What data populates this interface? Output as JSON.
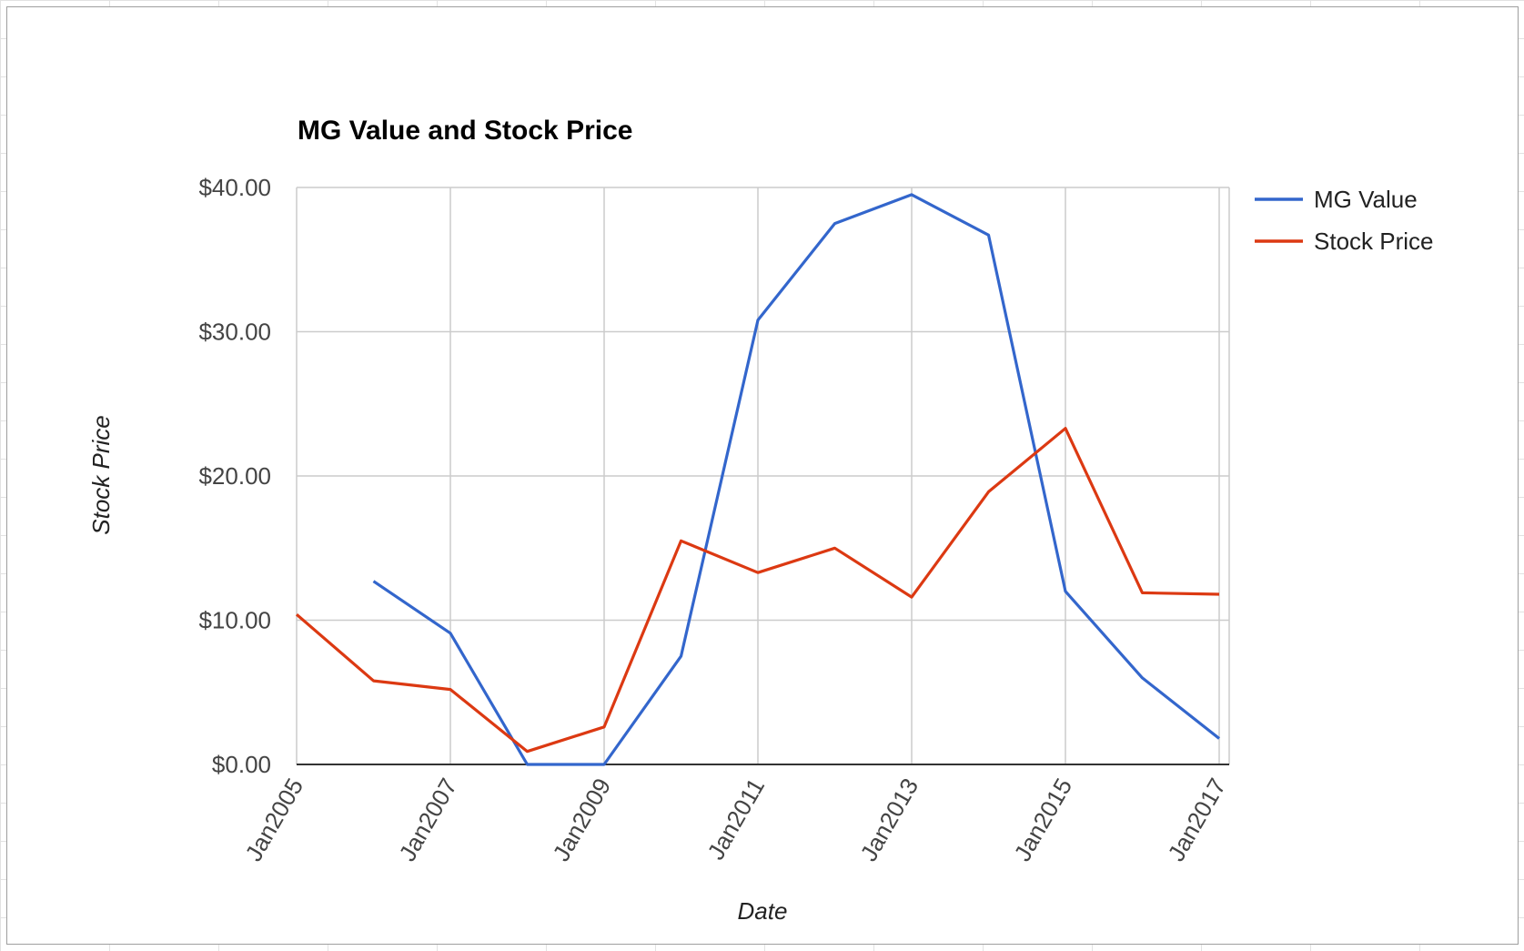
{
  "chart_data": {
    "type": "line",
    "title": "MG Value and Stock Price",
    "xlabel": "Date",
    "ylabel": "Stock Price",
    "x": [
      "2005-01",
      "2006-01",
      "2007-01",
      "2008-01",
      "2009-01",
      "2010-01",
      "2011-01",
      "2012-01",
      "2013-01",
      "2014-01",
      "2015-01",
      "2016-01",
      "2017-01"
    ],
    "x_ticks": [
      "Jan2005",
      "Jan2007",
      "Jan2009",
      "Jan2011",
      "Jan2013",
      "Jan2015",
      "Jan2017"
    ],
    "y_ticks": [
      "$0.00",
      "$10.00",
      "$20.00",
      "$30.00",
      "$40.00"
    ],
    "ylim": [
      0,
      40
    ],
    "grid": true,
    "legend_position": "right",
    "series": [
      {
        "name": "MG Value",
        "color": "#3366cc",
        "values": [
          null,
          12.7,
          9.1,
          0,
          0,
          7.5,
          30.8,
          37.5,
          39.5,
          36.7,
          12.0,
          6.0,
          1.8
        ]
      },
      {
        "name": "Stock Price",
        "color": "#dc3912",
        "values": [
          10.4,
          5.8,
          5.2,
          0.9,
          2.6,
          15.5,
          13.3,
          15.0,
          11.6,
          18.9,
          23.3,
          11.9,
          11.8
        ]
      }
    ]
  }
}
